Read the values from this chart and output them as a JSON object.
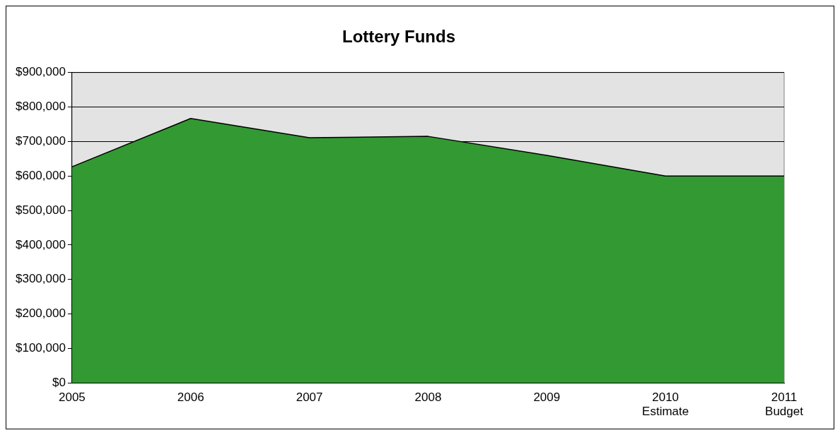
{
  "chart_data": {
    "type": "area",
    "title": "Lottery Funds",
    "categories": [
      "2005",
      "2006",
      "2007",
      "2008",
      "2009",
      "2010\nEstimate",
      "2011\nBudget"
    ],
    "series": [
      {
        "color": "#339933",
        "values": [
          627000,
          767000,
          711000,
          715000,
          660000,
          600000,
          600000
        ]
      }
    ],
    "ylim": [
      0,
      900000
    ],
    "yticks": [
      {
        "value": 0,
        "label": "$0"
      },
      {
        "value": 100000,
        "label": "$100,000"
      },
      {
        "value": 200000,
        "label": "$200,000"
      },
      {
        "value": 300000,
        "label": "$300,000"
      },
      {
        "value": 400000,
        "label": "$400,000"
      },
      {
        "value": 500000,
        "label": "$500,000"
      },
      {
        "value": 600000,
        "label": "$600,000"
      },
      {
        "value": 700000,
        "label": "$700,000"
      },
      {
        "value": 800000,
        "label": "$800,000"
      },
      {
        "value": 900000,
        "label": "$900,000"
      }
    ],
    "grid": "y",
    "legend": false
  }
}
